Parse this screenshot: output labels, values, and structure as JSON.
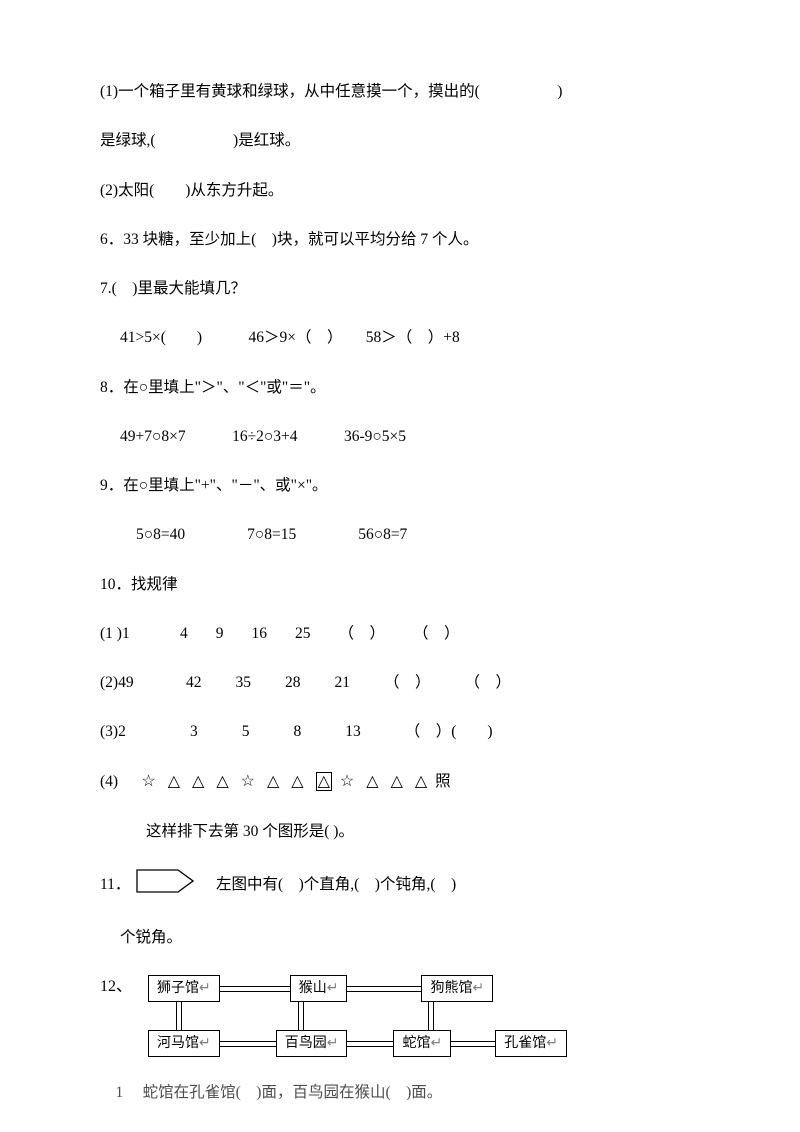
{
  "q1a": "(1)一个箱子里有黄球和绿球，从中任意摸一个，摸出的(　　　　　)",
  "q1b": "是绿球,(　　　　　)是红球。",
  "q2": "(2)太阳(　　)从东方升起。",
  "q6": "6．33 块糖，至少加上(　)块，就可以平均分给 7 个人。",
  "q7": "7.(　)里最大能填几？",
  "q7a": "41>5×(　　)　　　46＞9×（　）　　58＞（　）+8",
  "q8": "8．在○里填上\"＞\"、\"＜\"或\"＝\"。",
  "q8a": "49+7○8×7　　　16÷2○3+4　　　36-9○5×5",
  "q9": "9．在○里填上\"+\"、\"－\"、或\"×\"。",
  "q9a": "5○8=40　　　　7○8=15　　　　56○8=7",
  "q10": "10．找规律",
  "q10_1_label": "(1 )1",
  "q10_1_seq": [
    "4",
    "9",
    "16",
    "25",
    "（　）",
    "（　）"
  ],
  "q10_2_label": "(2)49",
  "q10_2_seq": [
    "42",
    "35",
    "28",
    "21",
    "（　）",
    "（　）"
  ],
  "q10_3_label": "(3)2",
  "q10_3_seq": [
    "3",
    "5",
    "8",
    "13",
    "（　）(　　)"
  ],
  "q10_4_label": "(4)",
  "q10_4_tail": "照",
  "q10_4b": "这样排下去第 30 个图形是(  )。",
  "shapes": [
    "star",
    "tri",
    "tri",
    "tri",
    "star",
    "tri",
    "tri",
    "tri-box",
    "star",
    "tri",
    "tri",
    "tri"
  ],
  "q11_pre": "11．",
  "q11_post": "　左图中有(　)个直角,(　)个钝角,(　)",
  "q11b": "个锐角。",
  "q12_label": "12、",
  "zoo": {
    "top": [
      "狮子馆",
      "猴山",
      "狗熊馆"
    ],
    "bottom": [
      "河马馆",
      "百鸟园",
      "蛇馆",
      "孔雀馆"
    ],
    "marker": "↵"
  },
  "q12_sub": "　1　 蛇馆在孔雀馆(　)面，百鸟园在猴山(　)面。",
  "colors": {
    "text": "#000000",
    "bg": "#ffffff",
    "gray": "#808080"
  },
  "pentagon": {
    "width": 58,
    "height": 24,
    "stroke": "#000000"
  }
}
